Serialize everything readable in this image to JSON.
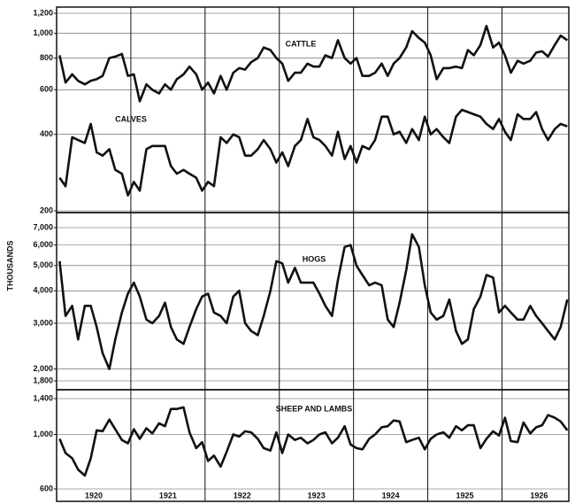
{
  "y_label": "THOUSANDS",
  "chart_data": [
    {
      "type": "line",
      "log_scale": true,
      "grid": true,
      "ylim": [
        200,
        1200
      ],
      "yticks": [
        200,
        400,
        600,
        800,
        {
          "value": 1000,
          "label": "1,000"
        },
        {
          "value": 1200,
          "label": "1,200"
        }
      ],
      "xlim": [
        1920,
        1926.9
      ],
      "year_lines": [
        1921,
        1922,
        1923,
        1924,
        1925,
        1926
      ],
      "x": [
        1920.04,
        1920.12,
        1920.21,
        1920.29,
        1920.38,
        1920.46,
        1920.54,
        1920.62,
        1920.71,
        1920.79,
        1920.88,
        1920.96,
        1921.04,
        1921.12,
        1921.21,
        1921.29,
        1921.38,
        1921.46,
        1921.54,
        1921.62,
        1921.71,
        1921.79,
        1921.88,
        1921.96,
        1922.04,
        1922.12,
        1922.21,
        1922.29,
        1922.38,
        1922.46,
        1922.54,
        1922.62,
        1922.71,
        1922.79,
        1922.88,
        1922.96,
        1923.04,
        1923.12,
        1923.21,
        1923.29,
        1923.38,
        1923.46,
        1923.54,
        1923.62,
        1923.71,
        1923.79,
        1923.88,
        1923.96,
        1924.04,
        1924.12,
        1924.21,
        1924.29,
        1924.38,
        1924.46,
        1924.54,
        1924.62,
        1924.71,
        1924.79,
        1924.88,
        1924.96,
        1925.04,
        1925.12,
        1925.21,
        1925.29,
        1925.38,
        1925.46,
        1925.54,
        1925.62,
        1925.71,
        1925.79,
        1925.88,
        1925.96,
        1926.04,
        1926.12,
        1926.21,
        1926.29,
        1926.38,
        1926.46,
        1926.54,
        1926.62,
        1926.71,
        1926.79,
        1926.88
      ],
      "series": [
        {
          "name": "CATTLE",
          "color": "#111111",
          "values": [
            820,
            640,
            690,
            650,
            630,
            650,
            660,
            680,
            800,
            810,
            830,
            680,
            690,
            540,
            630,
            600,
            580,
            630,
            600,
            660,
            690,
            740,
            690,
            600,
            640,
            580,
            680,
            600,
            700,
            730,
            720,
            770,
            800,
            880,
            860,
            800,
            760,
            650,
            700,
            700,
            760,
            740,
            740,
            820,
            800,
            940,
            800,
            760,
            800,
            680,
            680,
            700,
            760,
            680,
            760,
            800,
            880,
            1020,
            960,
            920,
            820,
            660,
            730,
            730,
            740,
            730,
            860,
            820,
            900,
            1070,
            880,
            920,
            820,
            700,
            780,
            760,
            780,
            840,
            850,
            810,
            900,
            980,
            940
          ]
        },
        {
          "name": "CALVES",
          "color": "#111111",
          "values": [
            270,
            250,
            390,
            380,
            370,
            440,
            340,
            330,
            350,
            290,
            280,
            230,
            260,
            240,
            350,
            360,
            360,
            360,
            300,
            280,
            290,
            280,
            270,
            240,
            260,
            250,
            390,
            370,
            400,
            390,
            330,
            330,
            350,
            380,
            350,
            310,
            340,
            300,
            360,
            380,
            460,
            390,
            380,
            360,
            330,
            410,
            320,
            360,
            310,
            360,
            350,
            380,
            470,
            470,
            400,
            410,
            370,
            420,
            380,
            470,
            400,
            420,
            390,
            370,
            470,
            500,
            490,
            480,
            470,
            440,
            420,
            460,
            410,
            380,
            480,
            460,
            460,
            490,
            420,
            380,
            420,
            440,
            430
          ]
        }
      ]
    },
    {
      "type": "line",
      "log_scale": true,
      "grid": true,
      "ylim": [
        1800,
        7000
      ],
      "yticks": [
        {
          "value": 1800,
          "label": "1,800"
        },
        {
          "value": 2000,
          "label": "2,000"
        },
        {
          "value": 3000,
          "label": "3,000"
        },
        {
          "value": 4000,
          "label": "4,000"
        },
        {
          "value": 5000,
          "label": "5,000"
        },
        {
          "value": 6000,
          "label": "6,000"
        },
        {
          "value": 7000,
          "label": "7,000"
        }
      ],
      "xlim": [
        1920,
        1926.9
      ],
      "year_lines": [
        1921,
        1922,
        1923,
        1924,
        1925,
        1926
      ],
      "x": [
        1920.04,
        1920.12,
        1920.21,
        1920.29,
        1920.38,
        1920.46,
        1920.54,
        1920.62,
        1920.71,
        1920.79,
        1920.88,
        1920.96,
        1921.04,
        1921.12,
        1921.21,
        1921.29,
        1921.38,
        1921.46,
        1921.54,
        1921.62,
        1921.71,
        1921.79,
        1921.88,
        1921.96,
        1922.04,
        1922.12,
        1922.21,
        1922.29,
        1922.38,
        1922.46,
        1922.54,
        1922.62,
        1922.71,
        1922.79,
        1922.88,
        1922.96,
        1923.04,
        1923.12,
        1923.21,
        1923.29,
        1923.38,
        1923.46,
        1923.54,
        1923.62,
        1923.71,
        1923.79,
        1923.88,
        1923.96,
        1924.04,
        1924.12,
        1924.21,
        1924.29,
        1924.38,
        1924.46,
        1924.54,
        1924.62,
        1924.71,
        1924.79,
        1924.88,
        1924.96,
        1925.04,
        1925.12,
        1925.21,
        1925.29,
        1925.38,
        1925.46,
        1925.54,
        1925.62,
        1925.71,
        1925.79,
        1925.88,
        1925.96,
        1926.04,
        1926.12,
        1926.21,
        1926.29,
        1926.38,
        1926.46,
        1926.54,
        1926.62,
        1926.71,
        1926.79,
        1926.88
      ],
      "series": [
        {
          "name": "HOGS",
          "color": "#111111",
          "values": [
            5200,
            3200,
            3500,
            2600,
            3500,
            3500,
            2900,
            2300,
            2000,
            2600,
            3300,
            3900,
            4300,
            3800,
            3100,
            3000,
            3200,
            3600,
            2900,
            2600,
            2500,
            2900,
            3400,
            3800,
            3900,
            3300,
            3200,
            3000,
            3800,
            4000,
            3000,
            2800,
            2700,
            3200,
            4000,
            5200,
            5100,
            4300,
            4900,
            4300,
            4300,
            4300,
            3900,
            3500,
            3200,
            4400,
            5900,
            6000,
            5000,
            4600,
            4200,
            4300,
            4200,
            3100,
            2900,
            3600,
            4800,
            6600,
            5900,
            4200,
            3300,
            3100,
            3200,
            3700,
            2800,
            2500,
            2600,
            3400,
            3800,
            4600,
            4500,
            3300,
            3500,
            3300,
            3100,
            3100,
            3500,
            3200,
            3000,
            2800,
            2600,
            2900,
            3700
          ]
        }
      ]
    },
    {
      "type": "line",
      "log_scale": true,
      "grid": true,
      "ylim": [
        600,
        1400
      ],
      "yticks": [
        600,
        {
          "value": 1000,
          "label": "1,000"
        },
        {
          "value": 1400,
          "label": "1,400"
        }
      ],
      "xlim": [
        1920,
        1926.9
      ],
      "year_lines": [
        1921,
        1922,
        1923,
        1924,
        1925,
        1926
      ],
      "xticks": [
        {
          "value": 1920.5,
          "label": "1920"
        },
        {
          "value": 1921.5,
          "label": "1921"
        },
        {
          "value": 1922.5,
          "label": "1922"
        },
        {
          "value": 1923.5,
          "label": "1923"
        },
        {
          "value": 1924.5,
          "label": "1924"
        },
        {
          "value": 1925.5,
          "label": "1925"
        },
        {
          "value": 1926.5,
          "label": "1926"
        }
      ],
      "x": [
        1920.04,
        1920.12,
        1920.21,
        1920.29,
        1920.38,
        1920.46,
        1920.54,
        1920.62,
        1920.71,
        1920.79,
        1920.88,
        1920.96,
        1921.04,
        1921.12,
        1921.21,
        1921.29,
        1921.38,
        1921.46,
        1921.54,
        1921.62,
        1921.71,
        1921.79,
        1921.88,
        1921.96,
        1922.04,
        1922.12,
        1922.21,
        1922.29,
        1922.38,
        1922.46,
        1922.54,
        1922.62,
        1922.71,
        1922.79,
        1922.88,
        1922.96,
        1923.04,
        1923.12,
        1923.21,
        1923.29,
        1923.38,
        1923.46,
        1923.54,
        1923.62,
        1923.71,
        1923.79,
        1923.88,
        1923.96,
        1924.04,
        1924.12,
        1924.21,
        1924.29,
        1924.38,
        1924.46,
        1924.54,
        1924.62,
        1924.71,
        1924.79,
        1924.88,
        1924.96,
        1925.04,
        1925.12,
        1925.21,
        1925.29,
        1925.38,
        1925.46,
        1925.54,
        1925.62,
        1925.71,
        1925.79,
        1925.88,
        1925.96,
        1926.04,
        1926.12,
        1926.21,
        1926.29,
        1926.38,
        1926.46,
        1926.54,
        1926.62,
        1926.71,
        1926.79,
        1926.88
      ],
      "series": [
        {
          "name": "SHEEP AND LAMBS",
          "color": "#111111",
          "values": [
            960,
            840,
            800,
            720,
            680,
            800,
            1040,
            1030,
            1150,
            1050,
            950,
            920,
            1050,
            960,
            1060,
            1010,
            1110,
            1080,
            1270,
            1270,
            1290,
            1020,
            880,
            930,
            780,
            820,
            740,
            850,
            1000,
            980,
            1030,
            1020,
            960,
            880,
            860,
            1020,
            840,
            1000,
            950,
            970,
            920,
            950,
            1000,
            1020,
            920,
            970,
            1080,
            910,
            880,
            870,
            960,
            1000,
            1070,
            1080,
            1140,
            1130,
            930,
            950,
            970,
            870,
            960,
            1000,
            1020,
            970,
            1080,
            1040,
            1090,
            1090,
            880,
            960,
            1030,
            990,
            1170,
            940,
            930,
            1120,
            1010,
            1070,
            1090,
            1200,
            1170,
            1130,
            1040
          ]
        }
      ]
    }
  ]
}
